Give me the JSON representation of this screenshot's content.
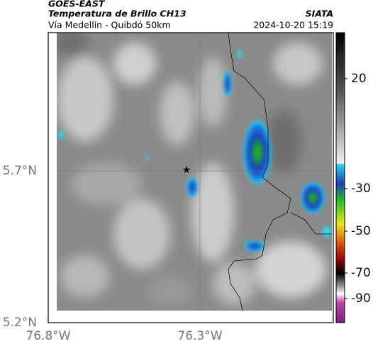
{
  "header": {
    "source": "GOES-EAST",
    "product": "Temperatura de Brillo CH13",
    "route": "Vía Medellín - Quibdó 50km",
    "agency": "SIATA",
    "datetime": "2024-10-20 15:19"
  },
  "map": {
    "lat_ticks": [
      "5.7°N",
      "5.2°N"
    ],
    "lon_ticks": [
      "76.8°W",
      "76.3°W"
    ]
  },
  "colorbar": {
    "ticks": [
      "20",
      "-30",
      "-50",
      "-70",
      "-90"
    ]
  }
}
